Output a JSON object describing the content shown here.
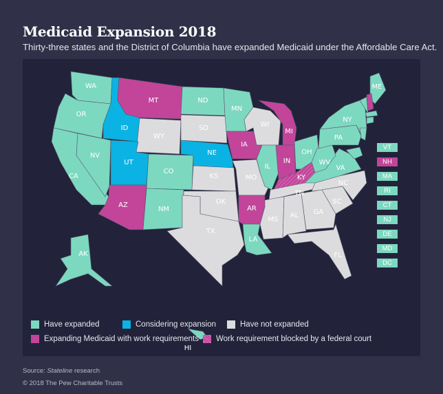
{
  "header": {
    "title": "Medicaid Expansion 2018",
    "subtitle": "Thirty-three states and the District of Columbia have expanded Medicaid under the Affordable Care Act."
  },
  "colors": {
    "expanded": "#7dd8c0",
    "considering": "#0ab3e3",
    "not_expanded": "#dcdcde",
    "work_requirements": "#c2459a",
    "blocked": "#c2459a",
    "panel": "#22233a",
    "background": "#303148"
  },
  "states": [
    {
      "abbr": "WA",
      "status": "expanded"
    },
    {
      "abbr": "OR",
      "status": "expanded"
    },
    {
      "abbr": "CA",
      "status": "expanded"
    },
    {
      "abbr": "NV",
      "status": "expanded"
    },
    {
      "abbr": "ID",
      "status": "considering"
    },
    {
      "abbr": "MT",
      "status": "work_requirements"
    },
    {
      "abbr": "WY",
      "status": "not_expanded"
    },
    {
      "abbr": "UT",
      "status": "considering"
    },
    {
      "abbr": "AZ",
      "status": "work_requirements"
    },
    {
      "abbr": "CO",
      "status": "expanded"
    },
    {
      "abbr": "NM",
      "status": "expanded"
    },
    {
      "abbr": "ND",
      "status": "expanded"
    },
    {
      "abbr": "SD",
      "status": "not_expanded"
    },
    {
      "abbr": "NE",
      "status": "considering"
    },
    {
      "abbr": "KS",
      "status": "not_expanded"
    },
    {
      "abbr": "OK",
      "status": "not_expanded"
    },
    {
      "abbr": "TX",
      "status": "not_expanded"
    },
    {
      "abbr": "MN",
      "status": "expanded"
    },
    {
      "abbr": "IA",
      "status": "work_requirements"
    },
    {
      "abbr": "MO",
      "status": "not_expanded"
    },
    {
      "abbr": "AR",
      "status": "work_requirements"
    },
    {
      "abbr": "LA",
      "status": "expanded"
    },
    {
      "abbr": "WI",
      "status": "not_expanded"
    },
    {
      "abbr": "IL",
      "status": "expanded"
    },
    {
      "abbr": "MI",
      "status": "work_requirements"
    },
    {
      "abbr": "IN",
      "status": "work_requirements"
    },
    {
      "abbr": "OH",
      "status": "expanded"
    },
    {
      "abbr": "KY",
      "status": "blocked"
    },
    {
      "abbr": "TN",
      "status": "not_expanded"
    },
    {
      "abbr": "MS",
      "status": "not_expanded"
    },
    {
      "abbr": "AL",
      "status": "not_expanded"
    },
    {
      "abbr": "GA",
      "status": "not_expanded"
    },
    {
      "abbr": "FL",
      "status": "not_expanded"
    },
    {
      "abbr": "SC",
      "status": "not_expanded"
    },
    {
      "abbr": "NC",
      "status": "not_expanded"
    },
    {
      "abbr": "VA",
      "status": "expanded"
    },
    {
      "abbr": "WV",
      "status": "expanded"
    },
    {
      "abbr": "PA",
      "status": "expanded"
    },
    {
      "abbr": "NY",
      "status": "expanded"
    },
    {
      "abbr": "ME",
      "status": "expanded"
    },
    {
      "abbr": "AK",
      "status": "expanded"
    },
    {
      "abbr": "HI",
      "status": "expanded"
    }
  ],
  "small_states": [
    {
      "abbr": "VT",
      "status": "expanded"
    },
    {
      "abbr": "NH",
      "status": "work_requirements"
    },
    {
      "abbr": "MA",
      "status": "expanded"
    },
    {
      "abbr": "RI",
      "status": "expanded"
    },
    {
      "abbr": "CT",
      "status": "expanded"
    },
    {
      "abbr": "NJ",
      "status": "expanded"
    },
    {
      "abbr": "DE",
      "status": "expanded"
    },
    {
      "abbr": "MD",
      "status": "expanded"
    },
    {
      "abbr": "DC",
      "status": "expanded"
    }
  ],
  "legend": [
    {
      "key": "expanded",
      "label": "Have expanded"
    },
    {
      "key": "considering",
      "label": "Considering expansion"
    },
    {
      "key": "not_expanded",
      "label": "Have not expanded"
    },
    {
      "key": "work_requirements",
      "label": "Expanding Medicaid with work requirements"
    },
    {
      "key": "blocked",
      "label": "Work requirement blocked by a federal court"
    }
  ],
  "footer": {
    "source_prefix": "Source: ",
    "source_italic": "Stateline",
    "source_suffix": " research",
    "copyright": "© 2018 The Pew Charitable Trusts"
  }
}
